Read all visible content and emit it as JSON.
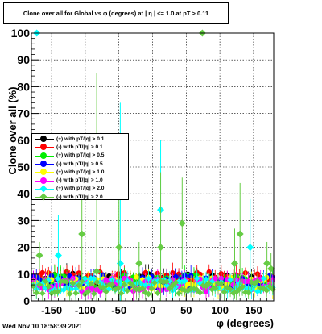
{
  "chart_data": {
    "type": "scatter",
    "title": "Clone  over all for Global vs φ (degrees) at |  η | <= 1.0 at pT > 0.11",
    "xlabel": "φ (degrees)",
    "ylabel": "Clone  over all (%)",
    "xlim": [
      -180,
      180
    ],
    "ylim": [
      0,
      100
    ],
    "xticks": [
      "-150",
      "-100",
      "-50",
      "0",
      "50",
      "100",
      "150"
    ],
    "yticks": [
      "0",
      "10",
      "20",
      "30",
      "40",
      "50",
      "60",
      "70",
      "80",
      "90",
      "100"
    ],
    "grid": true,
    "legend_position": "left-middle",
    "series": [
      {
        "name": "(+) with pT/|q| > 0.1",
        "color": "#000000",
        "marker": "circle",
        "baseline": 8
      },
      {
        "name": "(-) with pT/|q| > 0.1",
        "color": "#ff0000",
        "marker": "circle",
        "baseline": 8.5
      },
      {
        "name": "(+) with pT/|q| > 0.5",
        "color": "#00ee00",
        "marker": "circle",
        "baseline": 7.5
      },
      {
        "name": "(-) with pT/|q| > 0.5",
        "color": "#0000ff",
        "marker": "circle",
        "baseline": 7
      },
      {
        "name": "(+) with pT/|q| > 1.0",
        "color": "#ffff00",
        "marker": "circle",
        "baseline": 6.5
      },
      {
        "name": "(-) with pT/|q| > 1.0",
        "color": "#ff00ff",
        "marker": "circle",
        "baseline": 6
      },
      {
        "name": "(+) with pT/|q| > 2.0",
        "color": "#00ffff",
        "marker": "diamond",
        "baseline": 6,
        "outliers": [
          {
            "x": -172,
            "y": 100
          },
          {
            "x": -140,
            "y": 17,
            "err": 15
          },
          {
            "x": -48,
            "y": 14,
            "err": 60
          },
          {
            "x": 12,
            "y": 34,
            "err": 26
          },
          {
            "x": 145,
            "y": 20,
            "err": 18
          }
        ]
      },
      {
        "name": "(-) with pT/|q| > 2.0",
        "color": "#66cc44",
        "marker": "diamond",
        "baseline": 5,
        "outliers": [
          {
            "x": 74,
            "y": 100
          },
          {
            "x": -168,
            "y": 17,
            "err": 5
          },
          {
            "x": -105,
            "y": 25,
            "err": 20
          },
          {
            "x": -83,
            "y": 11,
            "err": 74
          },
          {
            "x": -50,
            "y": 20,
            "err": 25
          },
          {
            "x": -20,
            "y": 14,
            "err": 8
          },
          {
            "x": 12,
            "y": 20,
            "err": 28
          },
          {
            "x": 44,
            "y": 29,
            "err": 17
          },
          {
            "x": 122,
            "y": 14,
            "err": 13
          },
          {
            "x": 130,
            "y": 25,
            "err": 19
          },
          {
            "x": 170,
            "y": 14,
            "err": 8
          },
          {
            "x": 176,
            "y": 12,
            "err": 6
          }
        ]
      }
    ]
  },
  "footer": {
    "timestamp": "Wed Nov 10 18:58:39 2021"
  }
}
